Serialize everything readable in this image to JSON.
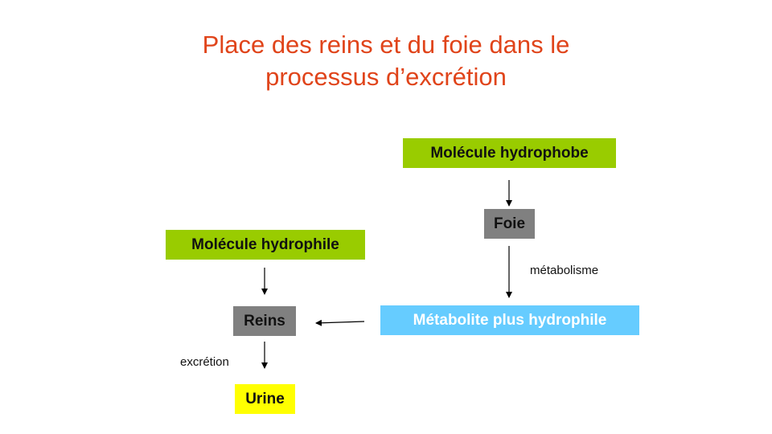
{
  "title": {
    "line1": "Place des reins et du foie dans le",
    "line2": "processus d’excrétion"
  },
  "nodes": {
    "molecule_hydrophobe": "Molécule hydrophobe",
    "foie": "Foie",
    "molecule_hydrophile": "Molécule hydrophile",
    "reins": "Reins",
    "metabolite": "Métabolite plus hydrophile",
    "urine": "Urine"
  },
  "labels": {
    "metabolisme": "métabolisme",
    "excretion": "excrétion"
  },
  "colors": {
    "title": "#e0441a",
    "green": "#99cc00",
    "gray": "#808080",
    "blue": "#66ccff",
    "yellow": "#ffff00"
  }
}
